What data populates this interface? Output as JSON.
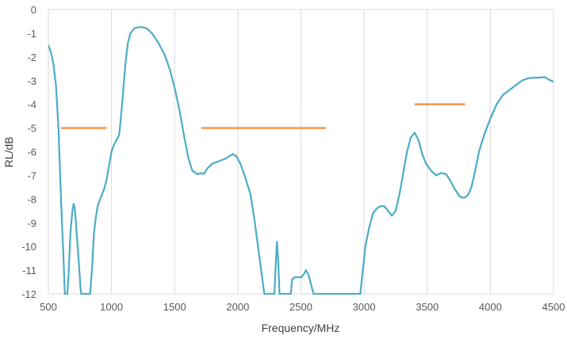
{
  "chart_data": {
    "type": "line",
    "xlabel": "Frequency/MHz",
    "ylabel": "RL/dB",
    "xlim": [
      500,
      4500
    ],
    "ylim": [
      -12,
      0
    ],
    "x_ticks": [
      500,
      1000,
      1500,
      2000,
      2500,
      3000,
      3500,
      4000,
      4500
    ],
    "y_ticks": [
      0,
      -1,
      -2,
      -3,
      -4,
      -5,
      -6,
      -7,
      -8,
      -9,
      -10,
      -11,
      -12
    ],
    "grid": "vertical",
    "series": [
      {
        "color": "#4BACC6",
        "points": [
          [
            500,
            -1.5
          ],
          [
            520,
            -1.8
          ],
          [
            540,
            -2.3
          ],
          [
            560,
            -3.2
          ],
          [
            580,
            -5.0
          ],
          [
            600,
            -8.0
          ],
          [
            620,
            -10.5
          ],
          [
            630,
            -12.0
          ],
          [
            650,
            -12.0
          ],
          [
            660,
            -11.2
          ],
          [
            675,
            -9.4
          ],
          [
            690,
            -8.5
          ],
          [
            700,
            -8.2
          ],
          [
            710,
            -8.4
          ],
          [
            725,
            -9.5
          ],
          [
            740,
            -10.6
          ],
          [
            755,
            -11.8
          ],
          [
            760,
            -12.0
          ],
          [
            830,
            -12.0
          ],
          [
            845,
            -11.0
          ],
          [
            860,
            -9.5
          ],
          [
            875,
            -8.8
          ],
          [
            890,
            -8.3
          ],
          [
            910,
            -8.0
          ],
          [
            940,
            -7.6
          ],
          [
            960,
            -7.2
          ],
          [
            980,
            -6.6
          ],
          [
            1000,
            -6.0
          ],
          [
            1020,
            -5.7
          ],
          [
            1040,
            -5.5
          ],
          [
            1060,
            -5.3
          ],
          [
            1070,
            -4.8
          ],
          [
            1090,
            -3.6
          ],
          [
            1110,
            -2.3
          ],
          [
            1130,
            -1.4
          ],
          [
            1150,
            -1.0
          ],
          [
            1180,
            -0.8
          ],
          [
            1210,
            -0.75
          ],
          [
            1250,
            -0.75
          ],
          [
            1280,
            -0.8
          ],
          [
            1320,
            -1.0
          ],
          [
            1370,
            -1.4
          ],
          [
            1420,
            -1.9
          ],
          [
            1460,
            -2.5
          ],
          [
            1500,
            -3.3
          ],
          [
            1540,
            -4.3
          ],
          [
            1580,
            -5.5
          ],
          [
            1610,
            -6.3
          ],
          [
            1640,
            -6.8
          ],
          [
            1680,
            -6.95
          ],
          [
            1710,
            -6.9
          ],
          [
            1730,
            -6.95
          ],
          [
            1760,
            -6.7
          ],
          [
            1800,
            -6.5
          ],
          [
            1850,
            -6.4
          ],
          [
            1900,
            -6.3
          ],
          [
            1930,
            -6.2
          ],
          [
            1960,
            -6.1
          ],
          [
            1990,
            -6.2
          ],
          [
            2020,
            -6.5
          ],
          [
            2060,
            -7.1
          ],
          [
            2100,
            -7.8
          ],
          [
            2130,
            -8.8
          ],
          [
            2160,
            -10.0
          ],
          [
            2190,
            -11.2
          ],
          [
            2210,
            -12.0
          ],
          [
            2290,
            -12.0
          ],
          [
            2300,
            -10.8
          ],
          [
            2310,
            -9.8
          ],
          [
            2320,
            -10.6
          ],
          [
            2330,
            -12.0
          ],
          [
            2420,
            -12.0
          ],
          [
            2430,
            -11.4
          ],
          [
            2450,
            -11.3
          ],
          [
            2480,
            -11.3
          ],
          [
            2500,
            -11.3
          ],
          [
            2520,
            -11.2
          ],
          [
            2540,
            -11.0
          ],
          [
            2560,
            -11.2
          ],
          [
            2580,
            -11.6
          ],
          [
            2600,
            -12.0
          ],
          [
            2970,
            -12.0
          ],
          [
            2990,
            -11.0
          ],
          [
            3010,
            -10.0
          ],
          [
            3040,
            -9.2
          ],
          [
            3070,
            -8.6
          ],
          [
            3100,
            -8.4
          ],
          [
            3130,
            -8.3
          ],
          [
            3160,
            -8.3
          ],
          [
            3190,
            -8.5
          ],
          [
            3220,
            -8.7
          ],
          [
            3250,
            -8.5
          ],
          [
            3280,
            -7.8
          ],
          [
            3310,
            -6.9
          ],
          [
            3340,
            -6.0
          ],
          [
            3370,
            -5.4
          ],
          [
            3400,
            -5.2
          ],
          [
            3430,
            -5.5
          ],
          [
            3460,
            -6.1
          ],
          [
            3490,
            -6.5
          ],
          [
            3530,
            -6.8
          ],
          [
            3570,
            -7.0
          ],
          [
            3610,
            -6.9
          ],
          [
            3650,
            -6.95
          ],
          [
            3680,
            -7.2
          ],
          [
            3720,
            -7.6
          ],
          [
            3760,
            -7.9
          ],
          [
            3790,
            -7.95
          ],
          [
            3820,
            -7.85
          ],
          [
            3850,
            -7.5
          ],
          [
            3880,
            -6.8
          ],
          [
            3910,
            -6.0
          ],
          [
            3950,
            -5.3
          ],
          [
            4000,
            -4.6
          ],
          [
            4050,
            -4.0
          ],
          [
            4100,
            -3.6
          ],
          [
            4150,
            -3.4
          ],
          [
            4200,
            -3.2
          ],
          [
            4250,
            -3.0
          ],
          [
            4300,
            -2.9
          ],
          [
            4350,
            -2.88
          ],
          [
            4400,
            -2.87
          ],
          [
            4430,
            -2.85
          ],
          [
            4460,
            -2.95
          ],
          [
            4500,
            -3.05
          ]
        ]
      },
      {
        "color": "#F79646",
        "segments": [
          [
            [
              600,
              -5
            ],
            [
              960,
              -5
            ]
          ],
          [
            [
              1710,
              -5
            ],
            [
              2700,
              -5
            ]
          ],
          [
            [
              3400,
              -4
            ],
            [
              3800,
              -4
            ]
          ]
        ]
      }
    ]
  }
}
